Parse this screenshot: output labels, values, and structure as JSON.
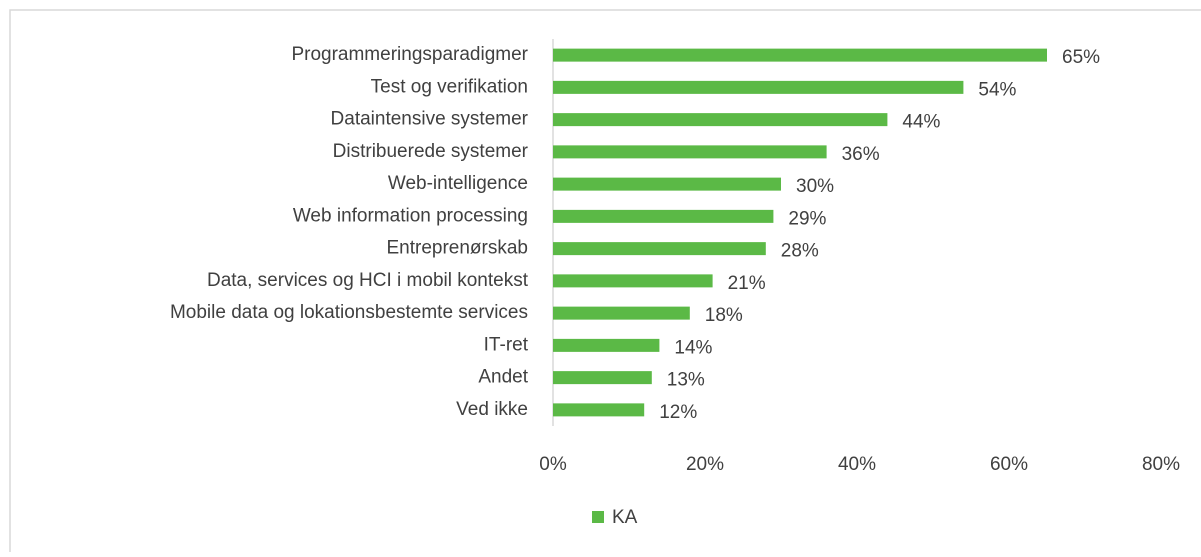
{
  "chart_data": {
    "type": "bar",
    "orientation": "horizontal",
    "categories": [
      "Programmeringsparadigmer",
      "Test og verifikation",
      "Dataintensive systemer",
      "Distribuerede systemer",
      "Web-intelligence",
      "Web information processing",
      "Entreprenørskab",
      "Data, services og HCI i mobil kontekst",
      "Mobile data og lokationsbestemte services",
      "IT-ret",
      "Andet",
      "Ved ikke"
    ],
    "series": [
      {
        "name": "KA",
        "color": "#5bb946",
        "values": [
          65,
          54,
          44,
          36,
          30,
          29,
          28,
          21,
          18,
          14,
          13,
          12
        ],
        "value_labels": [
          "65%",
          "54%",
          "44%",
          "36%",
          "30%",
          "29%",
          "28%",
          "21%",
          "18%",
          "14%",
          "13%",
          "12%"
        ]
      }
    ],
    "xlim": [
      0,
      80
    ],
    "xticks": [
      {
        "value": 0,
        "label": "0%"
      },
      {
        "value": 20,
        "label": "20%"
      },
      {
        "value": 40,
        "label": "40%"
      },
      {
        "value": 60,
        "label": "60%"
      },
      {
        "value": 80,
        "label": "80%"
      }
    ],
    "legend": "bottom"
  }
}
